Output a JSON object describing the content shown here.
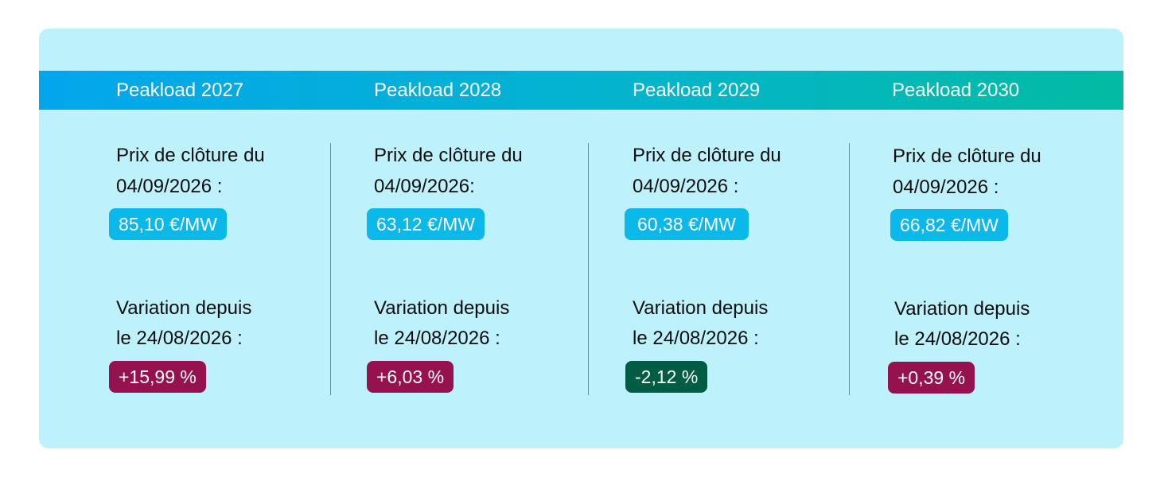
{
  "colors": {
    "card_bg": "#bdf1fc",
    "header_gradient_start": "#03a6ec",
    "header_gradient_end": "#03bba3",
    "price_pill": "#0ab8ea",
    "variation_positive": "#96124f",
    "variation_negative": "#005c42"
  },
  "columns": [
    {
      "title": "Peakload 2027",
      "price_label_line1": "Prix de clôture du",
      "price_label_line2": "04/09/2026 :",
      "price": "85,10 €/MW",
      "variation_label_line1": "Variation depuis",
      "variation_label_line2": "le 24/08/2026 :",
      "variation": "+15,99 %"
    },
    {
      "title": "Peakload 2028",
      "price_label_line1": "Prix de clôture du",
      "price_label_line2": "04/09/2026:",
      "price": "63,12 €/MW",
      "variation_label_line1": "Variation depuis",
      "variation_label_line2": "le 24/08/2026 :",
      "variation": "+6,03 %"
    },
    {
      "title": "Peakload 2029",
      "price_label_line1": "Prix de clôture du",
      "price_label_line2": "04/09/2026 :",
      "price": "60,38 €/MW",
      "variation_label_line1": "Variation depuis",
      "variation_label_line2": "le 24/08/2026 :",
      "variation": "-2,12 %"
    },
    {
      "title": "Peakload 2030",
      "price_label_line1": "Prix de clôture du",
      "price_label_line2": "04/09/2026 :",
      "price": "66,82 €/MW",
      "variation_label_line1": "Variation depuis",
      "variation_label_line2": "le 24/08/2026 :",
      "variation": "+0,39 %"
    }
  ]
}
